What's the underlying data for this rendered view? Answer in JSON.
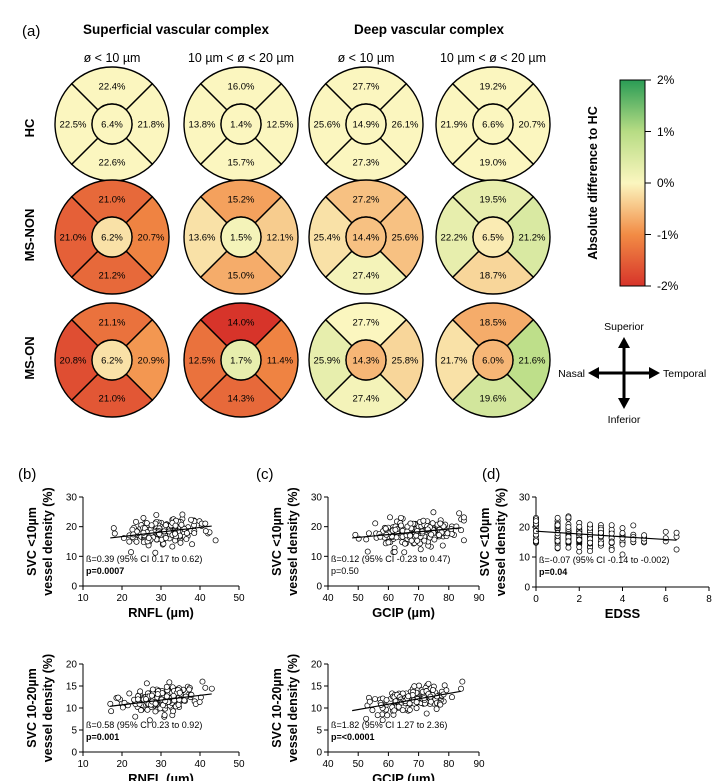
{
  "figure": {
    "panel_a": "(a)",
    "panel_b": "(b)",
    "panel_c": "(c)",
    "panel_d": "(d)",
    "group_superficial": "Superficial vascular complex",
    "group_deep": "Deep vascular complex",
    "col_small": "ø < 10 µm",
    "col_medium": "10 µm < ø < 20 µm",
    "colorbar_title": "Absolute difference to HC",
    "colorbar_ticks": [
      "2%",
      "1%",
      "0%",
      "-1%",
      "-2%"
    ],
    "compass": {
      "superior": "Superior",
      "inferior": "Inferior",
      "nasal": "Nasal",
      "temporal": "Temporal"
    }
  },
  "chart_data": [
    {
      "type": "heatmap",
      "title": "Vessel density ETDRS grids (panel a)",
      "colorbar": {
        "label": "Absolute difference to HC",
        "min": -2,
        "max": 2,
        "colors": [
          "#d7342a",
          "#f28c45",
          "#fbf6bf",
          "#b7dc84",
          "#2a9c55"
        ]
      },
      "grids": [
        {
          "row": "HC",
          "col": "SVC ø<10",
          "center": {
            "v": "6.4%",
            "d": 0
          },
          "superior": {
            "v": "22.4%",
            "d": 0
          },
          "inferior": {
            "v": "22.6%",
            "d": 0
          },
          "nasal": {
            "v": "22.5%",
            "d": 0
          },
          "temporal": {
            "v": "21.8%",
            "d": 0
          }
        },
        {
          "row": "HC",
          "col": "SVC 10-20",
          "center": {
            "v": "1.4%",
            "d": 0
          },
          "superior": {
            "v": "16.0%",
            "d": 0
          },
          "inferior": {
            "v": "15.7%",
            "d": 0
          },
          "nasal": {
            "v": "13.8%",
            "d": 0
          },
          "temporal": {
            "v": "12.5%",
            "d": 0
          }
        },
        {
          "row": "HC",
          "col": "DVC ø<10",
          "center": {
            "v": "14.9%",
            "d": 0
          },
          "superior": {
            "v": "27.7%",
            "d": 0
          },
          "inferior": {
            "v": "27.3%",
            "d": 0
          },
          "nasal": {
            "v": "25.6%",
            "d": 0
          },
          "temporal": {
            "v": "26.1%",
            "d": 0
          }
        },
        {
          "row": "HC",
          "col": "DVC 10-20",
          "center": {
            "v": "6.6%",
            "d": 0
          },
          "superior": {
            "v": "19.2%",
            "d": 0
          },
          "inferior": {
            "v": "19.0%",
            "d": 0
          },
          "nasal": {
            "v": "21.9%",
            "d": 0
          },
          "temporal": {
            "v": "20.7%",
            "d": 0
          }
        },
        {
          "row": "MS-NON",
          "col": "SVC ø<10",
          "center": {
            "v": "6.2%",
            "d": -0.2
          },
          "superior": {
            "v": "21.0%",
            "d": -1.4
          },
          "inferior": {
            "v": "21.2%",
            "d": -1.4
          },
          "nasal": {
            "v": "21.0%",
            "d": -1.5
          },
          "temporal": {
            "v": "20.7%",
            "d": -1.1
          }
        },
        {
          "row": "MS-NON",
          "col": "SVC 10-20",
          "center": {
            "v": "1.5%",
            "d": 0.1
          },
          "superior": {
            "v": "15.2%",
            "d": -0.8
          },
          "inferior": {
            "v": "15.0%",
            "d": -0.7
          },
          "nasal": {
            "v": "13.6%",
            "d": -0.2
          },
          "temporal": {
            "v": "12.1%",
            "d": -0.4
          }
        },
        {
          "row": "MS-NON",
          "col": "DVC ø<10",
          "center": {
            "v": "14.4%",
            "d": -0.5
          },
          "superior": {
            "v": "27.2%",
            "d": -0.5
          },
          "inferior": {
            "v": "27.4%",
            "d": 0.1
          },
          "nasal": {
            "v": "25.4%",
            "d": -0.2
          },
          "temporal": {
            "v": "25.6%",
            "d": -0.5
          }
        },
        {
          "row": "MS-NON",
          "col": "DVC 10-20",
          "center": {
            "v": "6.5%",
            "d": -0.1
          },
          "superior": {
            "v": "19.5%",
            "d": 0.3
          },
          "inferior": {
            "v": "18.7%",
            "d": -0.3
          },
          "nasal": {
            "v": "22.2%",
            "d": 0.3
          },
          "temporal": {
            "v": "21.2%",
            "d": 0.5
          }
        },
        {
          "row": "MS-ON",
          "col": "SVC ø<10",
          "center": {
            "v": "6.2%",
            "d": -0.2
          },
          "superior": {
            "v": "21.1%",
            "d": -1.3
          },
          "inferior": {
            "v": "21.0%",
            "d": -1.6
          },
          "nasal": {
            "v": "20.8%",
            "d": -1.7
          },
          "temporal": {
            "v": "20.9%",
            "d": -0.9
          }
        },
        {
          "row": "MS-ON",
          "col": "SVC 10-20",
          "center": {
            "v": "1.7%",
            "d": 0.3
          },
          "superior": {
            "v": "14.0%",
            "d": -2.0
          },
          "inferior": {
            "v": "14.3%",
            "d": -1.4
          },
          "nasal": {
            "v": "12.5%",
            "d": -1.3
          },
          "temporal": {
            "v": "11.4%",
            "d": -1.1
          }
        },
        {
          "row": "MS-ON",
          "col": "DVC ø<10",
          "center": {
            "v": "14.3%",
            "d": -0.6
          },
          "superior": {
            "v": "27.7%",
            "d": 0
          },
          "inferior": {
            "v": "27.4%",
            "d": 0.1
          },
          "nasal": {
            "v": "25.9%",
            "d": 0.3
          },
          "temporal": {
            "v": "25.8%",
            "d": -0.3
          }
        },
        {
          "row": "MS-ON",
          "col": "DVC 10-20",
          "center": {
            "v": "6.0%",
            "d": -0.6
          },
          "superior": {
            "v": "18.5%",
            "d": -0.7
          },
          "inferior": {
            "v": "19.6%",
            "d": 0.6
          },
          "nasal": {
            "v": "21.7%",
            "d": -0.2
          },
          "temporal": {
            "v": "21.6%",
            "d": 0.9
          }
        }
      ]
    },
    {
      "type": "scatter",
      "panel": "(b)",
      "xlabel": "RNFL (µm)",
      "ylabel_lines": [
        "SVC <10µm",
        "vessel density (%)"
      ],
      "xlim": [
        10,
        50
      ],
      "ylim": [
        0,
        30
      ],
      "xticks": [
        10,
        20,
        30,
        40,
        50
      ],
      "yticks": [
        0,
        10,
        20,
        30
      ],
      "stats": "ß=0.39 (95% CI 0.17 to 0.62)",
      "pvalue": "p=0.0007",
      "p_bold": true,
      "fit": {
        "x": [
          17,
          43
        ],
        "y": [
          16.2,
          20.2
        ]
      },
      "cloud": {
        "n": 180,
        "seed": 11,
        "x_mean": 30.5,
        "x_sd": 5,
        "x_min": 17,
        "x_max": 44,
        "slope": 0.16,
        "intercept": 13.4,
        "noise": 2.4,
        "y_min": 8,
        "y_max": 26
      }
    },
    {
      "type": "scatter",
      "panel": "(c)",
      "xlabel": "GCIP (µm)",
      "ylabel_lines": [
        "SVC <10µm",
        "vessel density (%)"
      ],
      "xlim": [
        40,
        90
      ],
      "ylim": [
        0,
        30
      ],
      "xticks": [
        40,
        50,
        60,
        70,
        80,
        90
      ],
      "yticks": [
        0,
        10,
        20,
        30
      ],
      "stats": "ß=0.12 (95% CI -0.23 to 0.47)",
      "pvalue": "p=0.50",
      "p_bold": false,
      "fit": {
        "x": [
          48,
          84
        ],
        "y": [
          16.2,
          19.6
        ]
      },
      "cloud": {
        "n": 180,
        "seed": 23,
        "x_mean": 68,
        "x_sd": 7,
        "x_min": 47,
        "x_max": 85,
        "slope": 0.095,
        "intercept": 11.6,
        "noise": 2.4,
        "y_min": 10,
        "y_max": 26
      }
    },
    {
      "type": "scatter",
      "panel": "(d)",
      "xlabel": "EDSS",
      "ylabel_lines": [
        "SVC <10µm",
        "vessel density (%)"
      ],
      "xlim": [
        0,
        8
      ],
      "ylim": [
        0,
        30
      ],
      "xticks": [
        0,
        2,
        4,
        6,
        8
      ],
      "yticks": [
        0,
        10,
        20,
        30
      ],
      "stats": "ß=-0.07 (95% CI -0.14 to -0.002)",
      "pvalue": "p=0.04",
      "p_bold": true,
      "fit": {
        "x": [
          0,
          6.5
        ],
        "y": [
          18.6,
          15.6
        ]
      },
      "cloud": {
        "n": 200,
        "seed": 37,
        "discrete": [
          0,
          1,
          1.5,
          2,
          2.5,
          3,
          3.5,
          4,
          4.5,
          5,
          6,
          6.5
        ],
        "weights": [
          22,
          30,
          26,
          30,
          26,
          22,
          12,
          10,
          6,
          6,
          3,
          3
        ],
        "slope": -0.46,
        "intercept": 18.4,
        "noise": 2.4,
        "y_min": 10,
        "y_max": 26
      }
    },
    {
      "type": "scatter",
      "panel": "(b) lower",
      "xlabel": "RNFL (µm)",
      "ylabel_lines": [
        "SVC 10-20µm",
        "vessel density (%)"
      ],
      "xlim": [
        10,
        50
      ],
      "ylim": [
        0,
        20
      ],
      "xticks": [
        10,
        20,
        30,
        40,
        50
      ],
      "yticks": [
        0,
        5,
        10,
        15,
        20
      ],
      "stats": "ß=0.58 (95% CI 0.23 to 0.92)",
      "pvalue": "p=0.001",
      "p_bold": true,
      "fit": {
        "x": [
          17,
          43
        ],
        "y": [
          10.4,
          13.2
        ]
      },
      "cloud": {
        "n": 180,
        "seed": 53,
        "x_mean": 30.5,
        "x_sd": 5,
        "x_min": 17,
        "x_max": 44,
        "slope": 0.11,
        "intercept": 8.5,
        "noise": 1.7,
        "y_min": 6,
        "y_max": 16
      }
    },
    {
      "type": "scatter",
      "panel": "(c) lower",
      "xlabel": "GCIP (µm)",
      "ylabel_lines": [
        "SVC 10-20µm",
        "vessel density (%)"
      ],
      "xlim": [
        40,
        90
      ],
      "ylim": [
        0,
        20
      ],
      "xticks": [
        40,
        50,
        60,
        70,
        80,
        90
      ],
      "yticks": [
        0,
        5,
        10,
        15,
        20
      ],
      "stats": "ß=1.82 (95% CI 1.27 to 2.36)",
      "pvalue": "p=<0.0001",
      "p_bold": true,
      "fit": {
        "x": [
          48,
          84
        ],
        "y": [
          9.4,
          13.8
        ]
      },
      "cloud": {
        "n": 180,
        "seed": 71,
        "x_mean": 68,
        "x_sd": 7,
        "x_min": 47,
        "x_max": 85,
        "slope": 0.122,
        "intercept": 3.5,
        "noise": 1.5,
        "y_min": 6,
        "y_max": 16
      }
    }
  ]
}
